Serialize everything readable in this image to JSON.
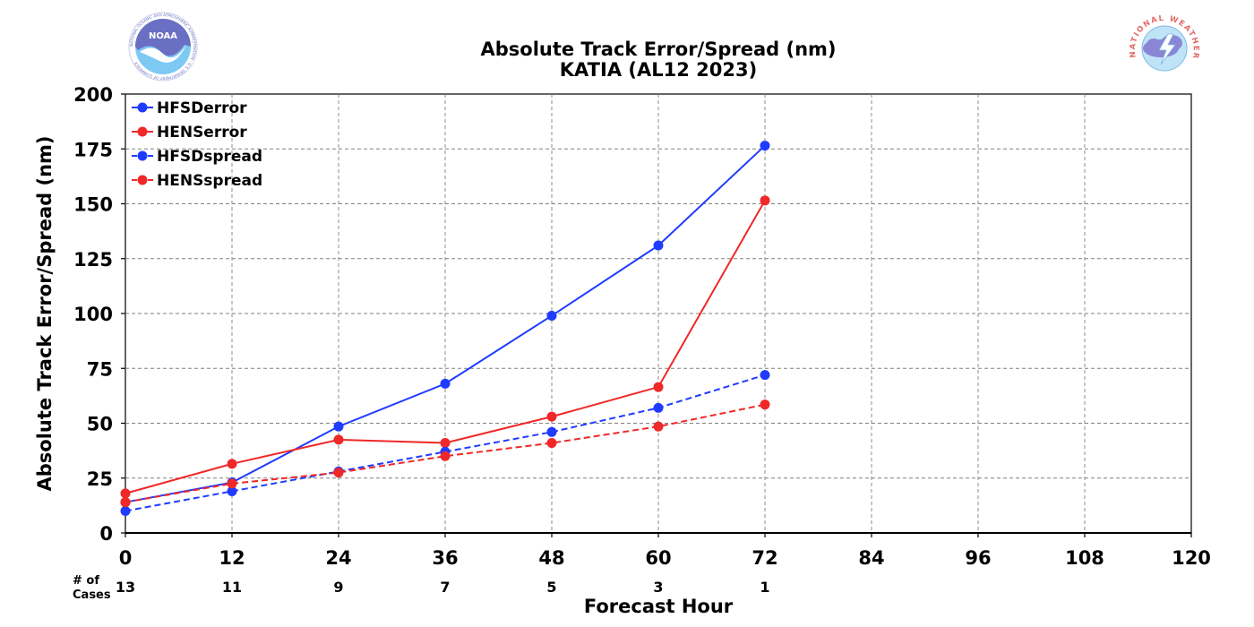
{
  "header": {
    "title_line1": "Absolute Track Error/Spread (nm)",
    "title_line2": "KATIA (AL12 2023)"
  },
  "logos": {
    "left": {
      "icon": "noaa-logo",
      "text": "NOAA",
      "ring_text": "NATIONAL OCEANIC AND ATMOSPHERIC ADMINISTRATION · U.S. DEPARTMENT OF COMMERCE",
      "color": "#6a6fc4"
    },
    "right": {
      "icon": "nws-logo",
      "ring_text": "NATIONAL WEATHER SERVICE",
      "color": "#e46a6a"
    }
  },
  "cases": {
    "label_line1": "# of",
    "label_line2": "Cases",
    "values": [
      "13",
      "11",
      "9",
      "7",
      "5",
      "3",
      "1"
    ]
  },
  "chart_data": {
    "type": "line",
    "title": "Absolute Track Error/Spread (nm)",
    "subtitle": "KATIA (AL12 2023)",
    "xlabel": "Forecast Hour",
    "ylabel": "Absolute Track Error/Spread (nm)",
    "xlim": [
      0,
      120
    ],
    "ylim": [
      0,
      200
    ],
    "x_ticks": [
      0,
      12,
      24,
      36,
      48,
      60,
      72,
      84,
      96,
      108,
      120
    ],
    "y_ticks": [
      0,
      25,
      50,
      75,
      100,
      125,
      150,
      175,
      200
    ],
    "grid": true,
    "legend_position": "top-left",
    "x": [
      0,
      12,
      24,
      36,
      48,
      60,
      72
    ],
    "series": [
      {
        "name": "HFSDerror",
        "color": "#1f3bff",
        "style": "solid",
        "values": [
          14,
          23,
          48.5,
          68,
          99,
          131,
          176.5
        ]
      },
      {
        "name": "HENSerror",
        "color": "#f02828",
        "style": "solid",
        "values": [
          18,
          31.5,
          42.5,
          41,
          53,
          66.5,
          151.5
        ]
      },
      {
        "name": "HFSDspread",
        "color": "#1f3bff",
        "style": "dashed",
        "values": [
          10,
          19,
          28,
          37,
          46,
          57,
          72
        ]
      },
      {
        "name": "HENSspread",
        "color": "#f02828",
        "style": "dashed",
        "values": [
          14,
          22.5,
          27.5,
          35,
          41,
          48.5,
          58.5
        ]
      }
    ]
  }
}
